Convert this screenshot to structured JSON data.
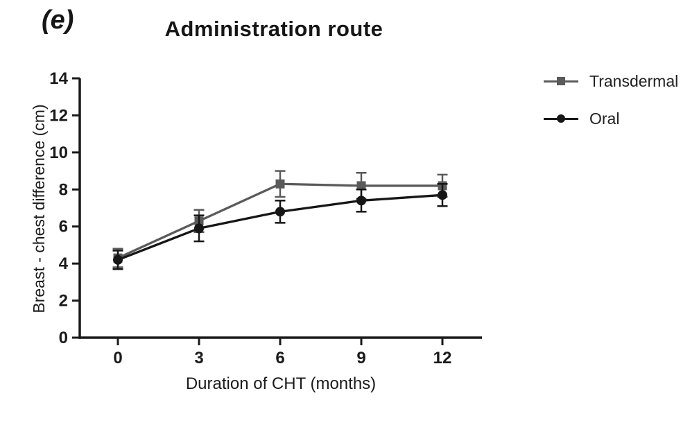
{
  "panel_label": "(e)",
  "title": "Administration route",
  "chart_data": {
    "type": "line",
    "title": "Administration route",
    "xlabel": "Duration of CHT (months)",
    "ylabel": "Breast - chest difference (cm)",
    "x": [
      0,
      3,
      6,
      9,
      12
    ],
    "xticks": [
      "0",
      "3",
      "6",
      "9",
      "12"
    ],
    "yticks": [
      "0",
      "2",
      "4",
      "6",
      "8",
      "10",
      "12",
      "14"
    ],
    "xlim": [
      0,
      12
    ],
    "ylim": [
      0,
      14
    ],
    "grid": false,
    "legend_position": "right",
    "error_bars": true,
    "series": [
      {
        "name": "Transdermal",
        "marker": "square",
        "color": "#5a5a5a",
        "values": [
          4.3,
          6.3,
          8.3,
          8.2,
          8.2
        ],
        "errors": [
          0.5,
          0.6,
          0.7,
          0.7,
          0.6
        ]
      },
      {
        "name": "Oral",
        "marker": "circle",
        "color": "#161616",
        "values": [
          4.2,
          5.9,
          6.8,
          7.4,
          7.7
        ],
        "errors": [
          0.5,
          0.7,
          0.6,
          0.6,
          0.6
        ]
      }
    ],
    "axis_color": "#1a1a1a",
    "tick_label_color": "#1a1a1a"
  }
}
